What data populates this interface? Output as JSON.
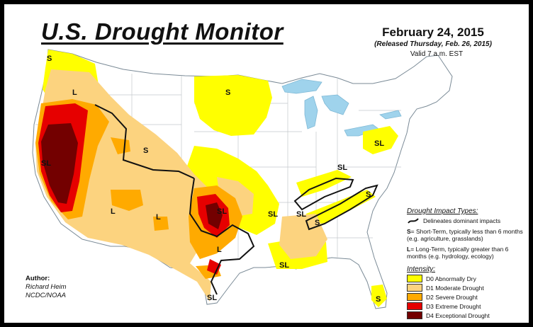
{
  "header": {
    "title": "U.S. Drought Monitor",
    "date": "February 24, 2015",
    "released": "(Released Thursday, Feb. 26, 2015)",
    "valid": "Valid 7 a.m. EST"
  },
  "map_labels": [
    "S",
    "L",
    "S",
    "SL",
    "S",
    "L",
    "L",
    "SL",
    "L",
    "SL",
    "SL",
    "S",
    "SL",
    "SL",
    "SL",
    "S",
    "SL",
    "S"
  ],
  "legend": {
    "impact_title": "Drought Impact Types:",
    "delineates": "Delineates dominant impacts",
    "short_term_key": "S",
    "short_term_text": "= Short-Term, typically less than 6 months (e.g. agriculture, grasslands)",
    "long_term_key": "L",
    "long_term_text": "= Long-Term, typically greater than 6 months (e.g. hydrology, ecology)",
    "intensity_title": "Intensity:",
    "intensity": [
      {
        "label": "D0 Abnormally Dry",
        "color": "#ffff00"
      },
      {
        "label": "D1 Moderate Drought",
        "color": "#fcd37f"
      },
      {
        "label": "D2 Severe Drought",
        "color": "#ffaa00"
      },
      {
        "label": "D3 Extreme Drought",
        "color": "#e60000"
      },
      {
        "label": "D4 Exceptional Drought",
        "color": "#730000"
      }
    ]
  },
  "author": {
    "heading": "Author:",
    "name": "Richard Heim",
    "org": "NCDC/NOAA"
  },
  "colors": {
    "water": "#9fd3ec",
    "border": "#9aa0a6",
    "frame": "#000000"
  }
}
